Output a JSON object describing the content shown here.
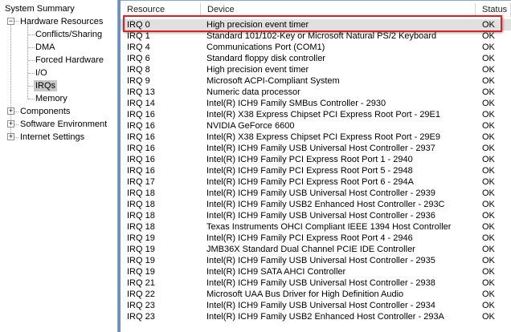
{
  "tree": {
    "root": "System Summary",
    "hardware": "Hardware Resources",
    "hardware_children": [
      "Conflicts/Sharing",
      "DMA",
      "Forced Hardware",
      "I/O",
      "IRQs",
      "Memory"
    ],
    "selected": "IRQs",
    "others": [
      "Components",
      "Software Environment",
      "Internet Settings"
    ]
  },
  "table": {
    "columns": [
      "Resource",
      "Device",
      "Status"
    ],
    "highlighted_row": 0,
    "highlight_color": "#e0201e",
    "rows": [
      [
        "IRQ 0",
        "High precision event timer",
        "OK"
      ],
      [
        "IRQ 1",
        "Standard 101/102-Key or Microsoft Natural PS/2 Keyboard",
        "OK"
      ],
      [
        "IRQ 4",
        "Communications Port (COM1)",
        "OK"
      ],
      [
        "IRQ 6",
        "Standard floppy disk controller",
        "OK"
      ],
      [
        "IRQ 8",
        "High precision event timer",
        "OK"
      ],
      [
        "IRQ 9",
        "Microsoft ACPI-Compliant System",
        "OK"
      ],
      [
        "IRQ 13",
        "Numeric data processor",
        "OK"
      ],
      [
        "IRQ 14",
        "Intel(R) ICH9 Family SMBus Controller - 2930",
        "OK"
      ],
      [
        "IRQ 16",
        "Intel(R) X38 Express Chipset PCI Express Root Port - 29E1",
        "OK"
      ],
      [
        "IRQ 16",
        "NVIDIA GeForce 6600",
        "OK"
      ],
      [
        "IRQ 16",
        "Intel(R) X38 Express Chipset PCI Express Root Port - 29E9",
        "OK"
      ],
      [
        "IRQ 16",
        "Intel(R) ICH9 Family USB Universal Host Controller - 2937",
        "OK"
      ],
      [
        "IRQ 16",
        "Intel(R) ICH9 Family PCI Express Root Port 1 - 2940",
        "OK"
      ],
      [
        "IRQ 16",
        "Intel(R) ICH9 Family PCI Express Root Port 5 - 2948",
        "OK"
      ],
      [
        "IRQ 17",
        "Intel(R) ICH9 Family PCI Express Root Port 6 - 294A",
        "OK"
      ],
      [
        "IRQ 18",
        "Intel(R) ICH9 Family USB Universal Host Controller - 2939",
        "OK"
      ],
      [
        "IRQ 18",
        "Intel(R) ICH9 Family USB2 Enhanced Host Controller - 293C",
        "OK"
      ],
      [
        "IRQ 18",
        "Intel(R) ICH9 Family USB Universal Host Controller - 2936",
        "OK"
      ],
      [
        "IRQ 18",
        "Texas Instruments OHCI Compliant IEEE 1394 Host Controller",
        "OK"
      ],
      [
        "IRQ 19",
        "Intel(R) ICH9 Family PCI Express Root Port 4 - 2946",
        "OK"
      ],
      [
        "IRQ 19",
        "JMB36X Standard Dual Channel PCIE IDE Controller",
        "OK"
      ],
      [
        "IRQ 19",
        "Intel(R) ICH9 Family USB Universal Host Controller - 2935",
        "OK"
      ],
      [
        "IRQ 19",
        "Intel(R) ICH9 SATA AHCI Controller",
        "OK"
      ],
      [
        "IRQ 21",
        "Intel(R) ICH9 Family USB Universal Host Controller - 2938",
        "OK"
      ],
      [
        "IRQ 22",
        "Microsoft UAA Bus Driver for High Definition Audio",
        "OK"
      ],
      [
        "IRQ 23",
        "Intel(R) ICH9 Family USB Universal Host Controller - 2934",
        "OK"
      ],
      [
        "IRQ 23",
        "Intel(R) ICH9 Family USB2 Enhanced Host Controller - 293A",
        "OK"
      ]
    ]
  }
}
